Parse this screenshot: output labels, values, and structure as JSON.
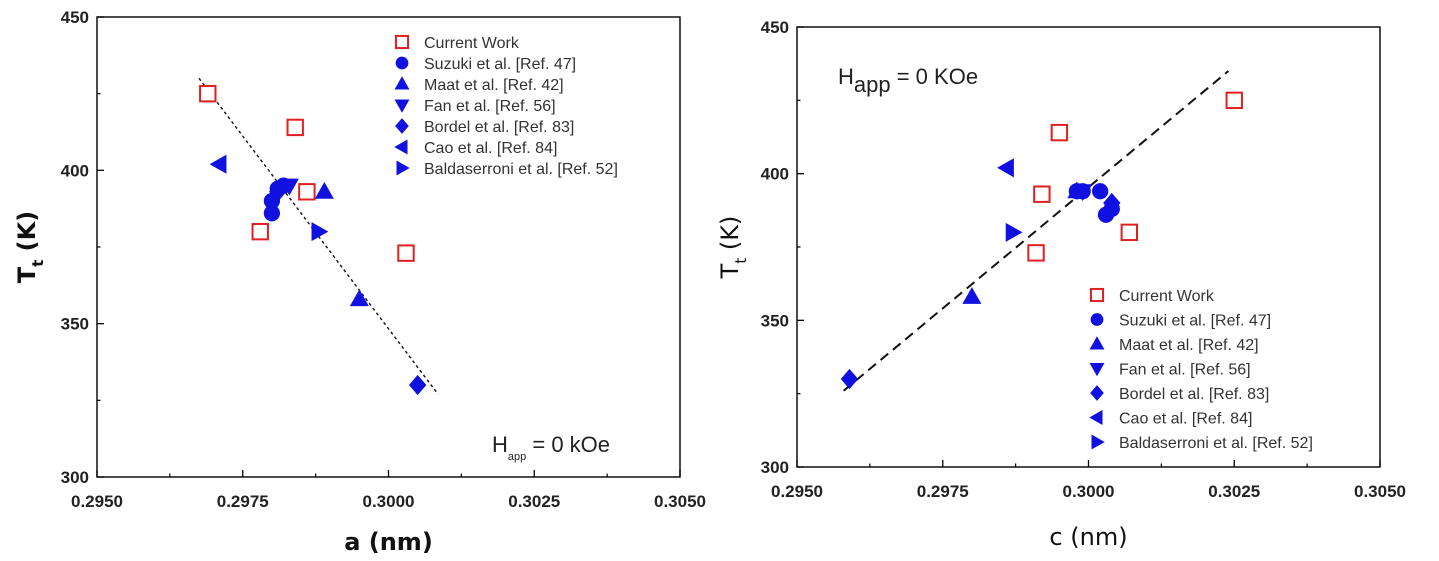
{
  "chart_data": [
    {
      "type": "scatter",
      "xlabel": "a (nm)",
      "ylabel": "T",
      "ylabel_sub": "t",
      "ylabel_unit": " (K)",
      "xlim": [
        0.295,
        0.305
      ],
      "ylim": [
        300,
        450
      ],
      "xticks": [
        "0.2950",
        "0.2975",
        "0.3000",
        "0.3025",
        "0.3050"
      ],
      "yticks": [
        "300",
        "350",
        "400",
        "450"
      ],
      "annotation": {
        "main": "H",
        "sub": "app",
        "rest": " = 0 kOe"
      },
      "legend_position": "top-right",
      "series": [
        {
          "name": "Current Work",
          "marker": "open-square",
          "color": "#e02020",
          "points": [
            [
              0.2969,
              425
            ],
            [
              0.2978,
              380
            ],
            [
              0.2984,
              414
            ],
            [
              0.2986,
              393
            ],
            [
              0.3003,
              373
            ]
          ]
        },
        {
          "name": "Suzuki et al. [Ref. 47]",
          "marker": "circle",
          "color": "#1010e0",
          "points": [
            [
              0.298,
              386
            ],
            [
              0.298,
              390
            ],
            [
              0.2981,
              394
            ],
            [
              0.2982,
              395
            ]
          ]
        },
        {
          "name": "Maat et al. [Ref. 42]",
          "marker": "triangle-up",
          "color": "#1010e0",
          "points": [
            [
              0.2989,
              393
            ],
            [
              0.2995,
              358
            ]
          ]
        },
        {
          "name": "Fan et al. [Ref. 56]",
          "marker": "triangle-down",
          "color": "#1010e0",
          "points": [
            [
              0.2983,
              395
            ]
          ]
        },
        {
          "name": "Bordel et al. [Ref. 83]",
          "marker": "diamond",
          "color": "#1010e0",
          "points": [
            [
              0.2981,
              393
            ],
            [
              0.3005,
              330
            ]
          ]
        },
        {
          "name": "Cao et al. [Ref. 84]",
          "marker": "triangle-left",
          "color": "#1010e0",
          "points": [
            [
              0.2971,
              402
            ]
          ]
        },
        {
          "name": "Baldaserroni et al. [Ref. 52]",
          "marker": "triangle-right",
          "color": "#1010e0",
          "points": [
            [
              0.2988,
              380
            ]
          ]
        }
      ],
      "fit_line": {
        "style": "dotted",
        "points": [
          [
            0.29675,
            430
          ],
          [
            0.30085,
            327
          ]
        ]
      }
    },
    {
      "type": "scatter",
      "xlabel": "c (nm)",
      "ylabel": "T",
      "ylabel_sub": "t",
      "ylabel_unit": " (K)",
      "xlim": [
        0.295,
        0.305
      ],
      "ylim": [
        300,
        450
      ],
      "xticks": [
        "0.2950",
        "0.2975",
        "0.3000",
        "0.3025",
        "0.3050"
      ],
      "yticks": [
        "300",
        "350",
        "400",
        "450"
      ],
      "annotation": {
        "main": "H",
        "sub": "app",
        "rest": " = 0 KOe"
      },
      "legend_position": "bottom-right",
      "series": [
        {
          "name": "Current Work",
          "marker": "open-square",
          "color": "#e02020",
          "points": [
            [
              0.3025,
              425
            ],
            [
              0.2995,
              414
            ],
            [
              0.2992,
              393
            ],
            [
              0.3007,
              380
            ],
            [
              0.2991,
              373
            ]
          ]
        },
        {
          "name": "Suzuki et al. [Ref. 47]",
          "marker": "circle",
          "color": "#1010e0",
          "points": [
            [
              0.2998,
              394
            ],
            [
              0.2999,
              394
            ],
            [
              0.3002,
              394
            ],
            [
              0.3003,
              386
            ],
            [
              0.3004,
              388
            ]
          ]
        },
        {
          "name": "Maat et al. [Ref. 42]",
          "marker": "triangle-up",
          "color": "#1010e0",
          "points": [
            [
              0.2998,
              394
            ],
            [
              0.298,
              358
            ]
          ]
        },
        {
          "name": "Fan et al. [Ref. 56]",
          "marker": "triangle-down",
          "color": "#1010e0",
          "points": [
            [
              0.2999,
              394
            ]
          ]
        },
        {
          "name": "Bordel et al. [Ref. 83]",
          "marker": "diamond",
          "color": "#1010e0",
          "points": [
            [
              0.3004,
              390
            ],
            [
              0.2959,
              330
            ]
          ]
        },
        {
          "name": "Cao et al. [Ref. 84]",
          "marker": "triangle-left",
          "color": "#1010e0",
          "points": [
            [
              0.2986,
              402
            ]
          ]
        },
        {
          "name": "Baldaserroni et al. [Ref. 52]",
          "marker": "triangle-right",
          "color": "#1010e0",
          "points": [
            [
              0.2987,
              380
            ]
          ]
        }
      ],
      "fit_line": {
        "style": "dashed",
        "points": [
          [
            0.2958,
            326
          ],
          [
            0.3024,
            435
          ]
        ]
      }
    }
  ]
}
